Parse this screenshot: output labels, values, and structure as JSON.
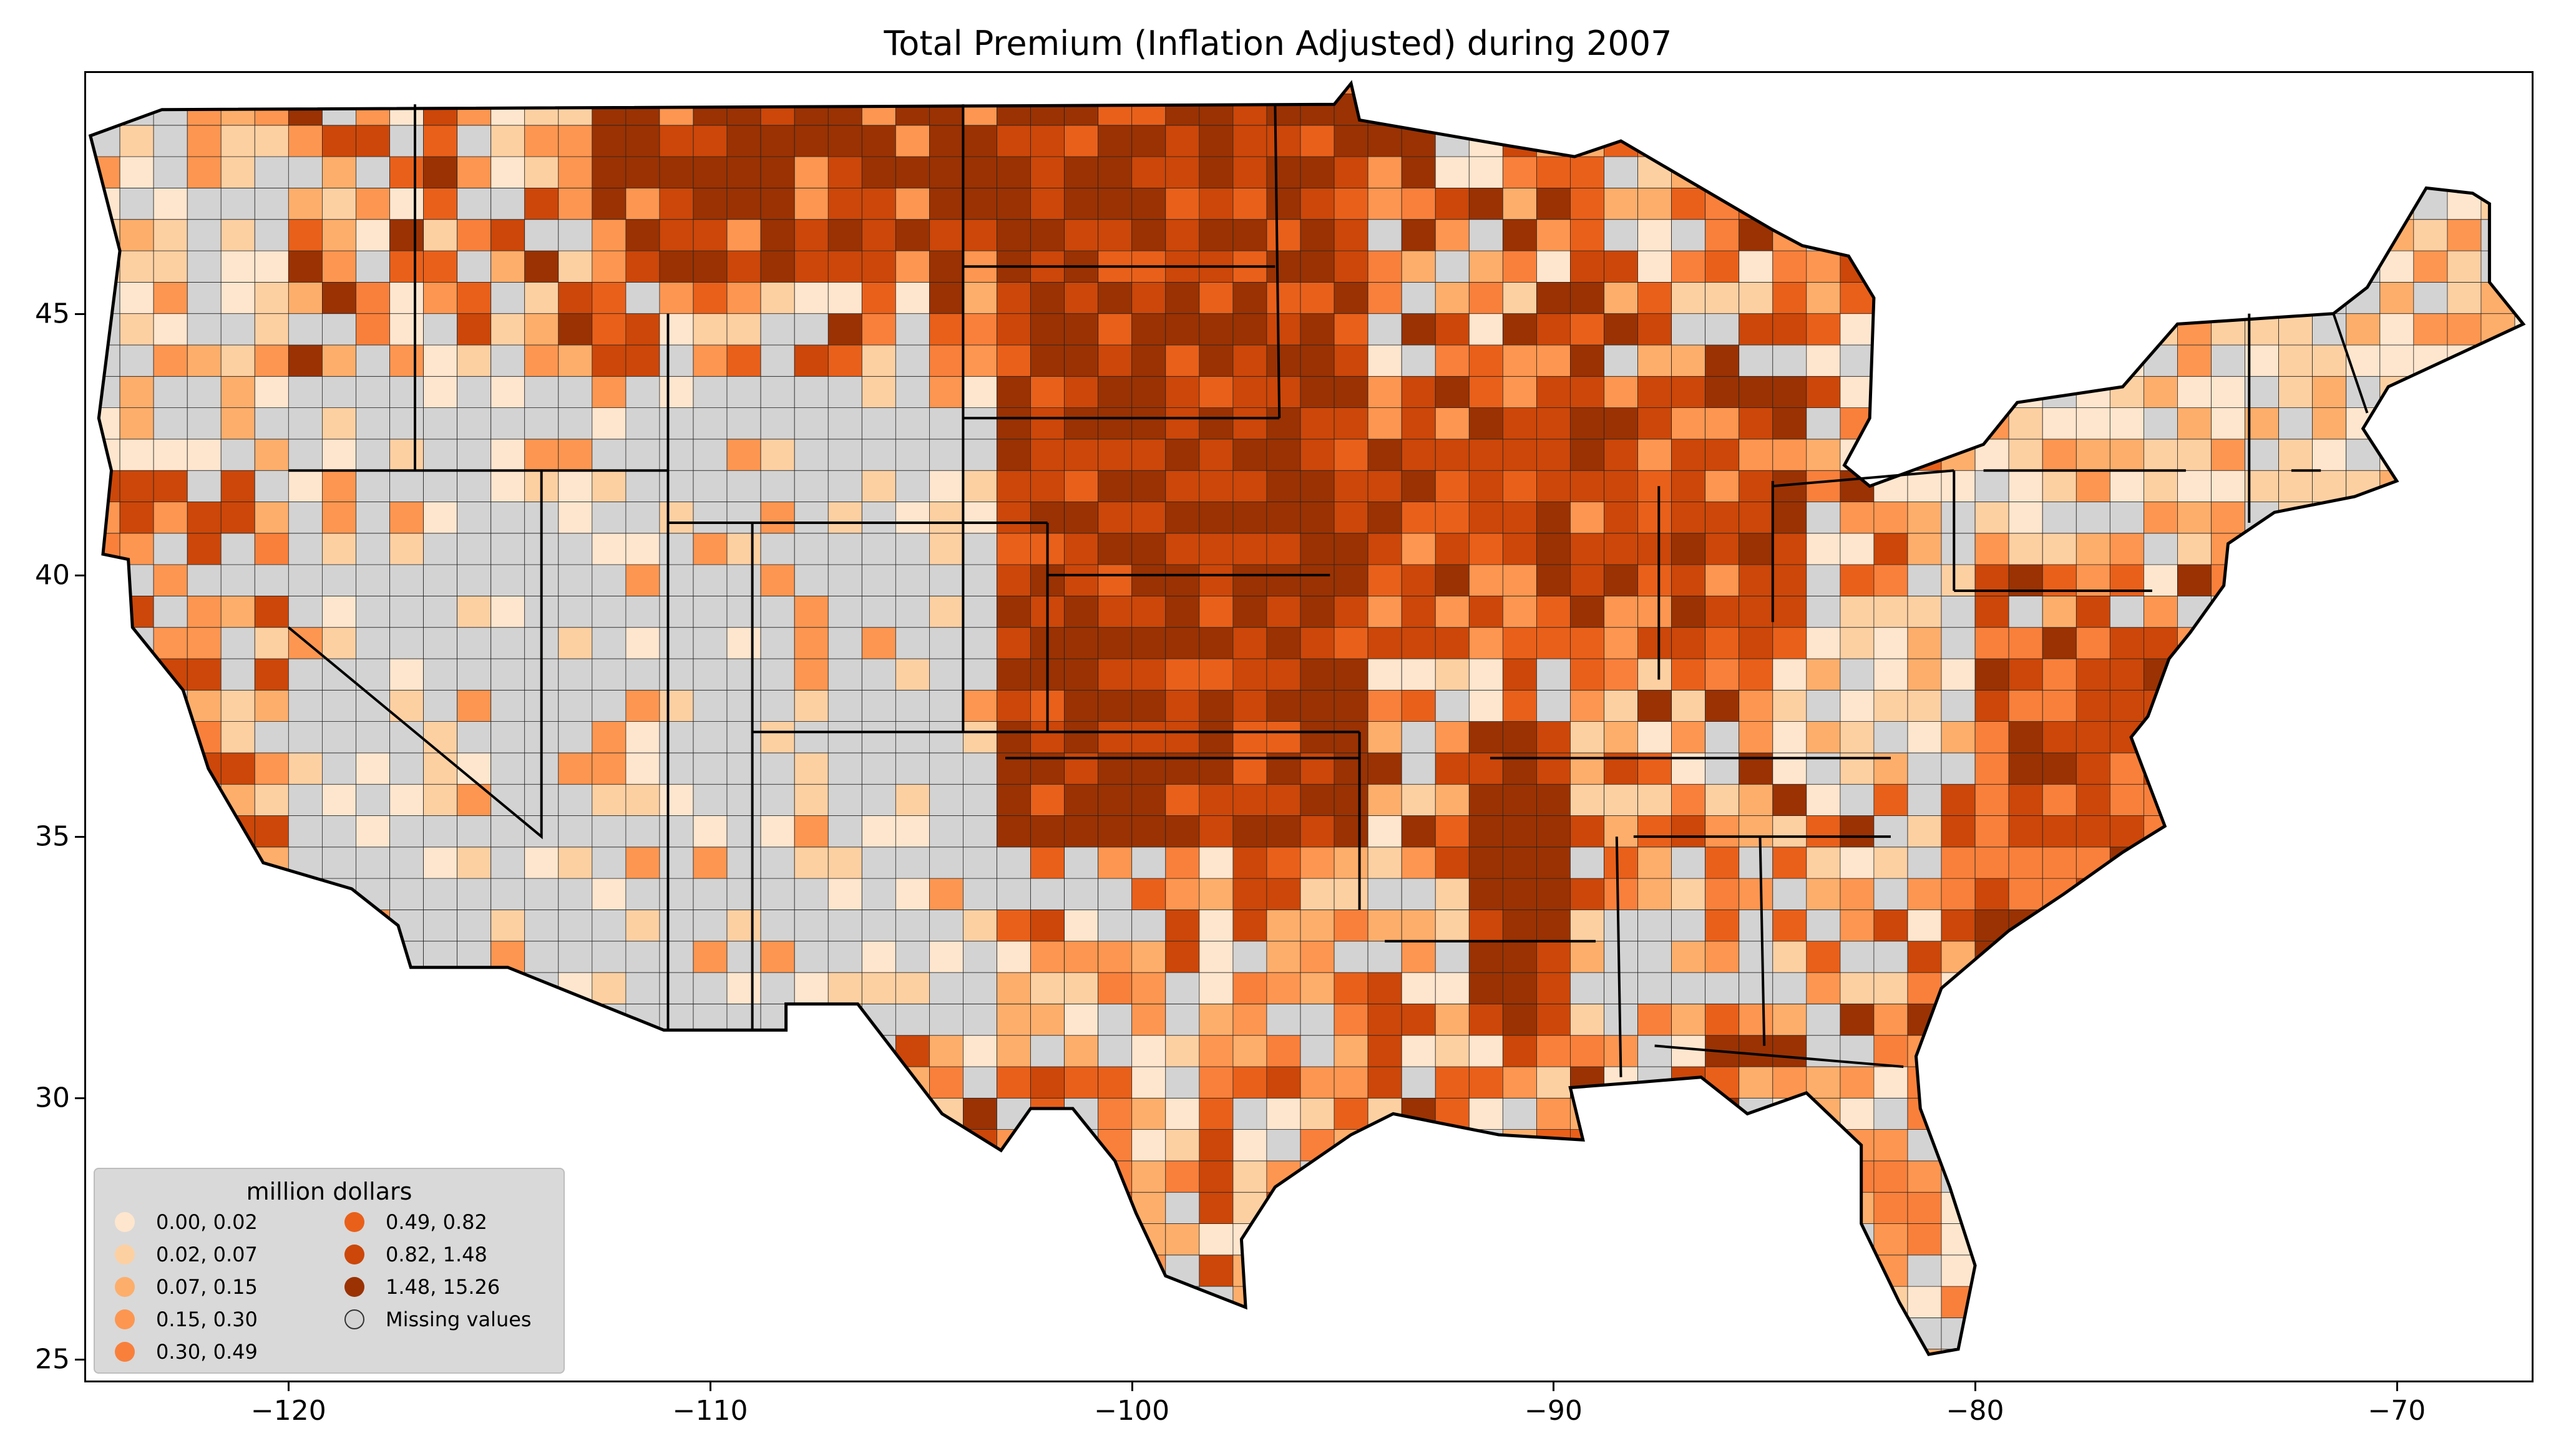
{
  "title": "Total  Premium  (Inflation Adjusted) during 2007",
  "axes": {
    "x_ticks": [
      "−120",
      "−110",
      "−100",
      "−90",
      "−80",
      "−70"
    ],
    "y_ticks": [
      "45",
      "40",
      "35",
      "30",
      "25"
    ],
    "xlim": [
      -124.8,
      -66.8
    ],
    "ylim": [
      24.6,
      49.6
    ]
  },
  "legend": {
    "title": "million dollars",
    "items": [
      {
        "label": "0.00,  0.02",
        "color": "#fee6ce"
      },
      {
        "label": "0.02,  0.07",
        "color": "#fdd0a2"
      },
      {
        "label": "0.07,  0.15",
        "color": "#fdae6b"
      },
      {
        "label": "0.15,  0.30",
        "color": "#fd9650"
      },
      {
        "label": "0.30,  0.49",
        "color": "#f9803b"
      },
      {
        "label": "0.49,  0.82",
        "color": "#e9601a"
      },
      {
        "label": "0.82,  1.48",
        "color": "#cc4709"
      },
      {
        "label": "1.48, 15.26",
        "color": "#9a3203"
      },
      {
        "label": "Missing values",
        "color": "#d3d3d3"
      }
    ]
  },
  "chart_data": {
    "type": "choropleth",
    "title": "Total  Premium  (Inflation Adjusted) during 2007",
    "region": "Contiguous United States, county level",
    "legend_title": "million dollars",
    "bins": [
      {
        "range": [
          0.0,
          0.02
        ],
        "color": "#fee6ce"
      },
      {
        "range": [
          0.02,
          0.07
        ],
        "color": "#fdd0a2"
      },
      {
        "range": [
          0.07,
          0.15
        ],
        "color": "#fdae6b"
      },
      {
        "range": [
          0.15,
          0.3
        ],
        "color": "#fd9650"
      },
      {
        "range": [
          0.3,
          0.49
        ],
        "color": "#f9803b"
      },
      {
        "range": [
          0.49,
          0.82
        ],
        "color": "#e9601a"
      },
      {
        "range": [
          0.82,
          1.48
        ],
        "color": "#cc4709"
      },
      {
        "range": [
          1.48,
          15.26
        ],
        "color": "#9a3203"
      }
    ],
    "missing_color": "#d3d3d3",
    "x_ticks": [
      -120,
      -110,
      -100,
      -90,
      -80,
      -70
    ],
    "y_ticks": [
      25,
      30,
      35,
      40,
      45
    ],
    "xlim": [
      -124.8,
      -66.8
    ],
    "ylim": [
      24.6,
      49.6
    ],
    "grid": false
  }
}
